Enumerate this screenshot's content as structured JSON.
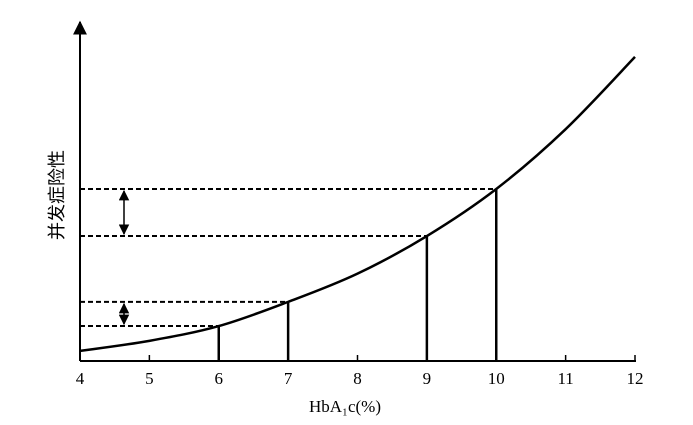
{
  "chart_data": {
    "type": "line",
    "x_label": "HbA₁c(%)",
    "y_label": "并发症险性",
    "x": [
      4,
      5,
      6,
      7,
      8,
      9,
      10,
      11,
      12
    ],
    "series": [
      {
        "color": "#000000",
        "values": [
          3,
          6,
          10.4,
          17.6,
          26,
          37.2,
          51.2,
          69,
          90.5
        ]
      }
    ],
    "highlight": [
      2,
      3,
      5,
      6
    ],
    "xlim": [
      4,
      12
    ],
    "xticks": [
      4,
      5,
      6,
      7,
      8,
      9,
      10,
      11,
      12
    ],
    "ylim": [
      0,
      100
    ]
  }
}
